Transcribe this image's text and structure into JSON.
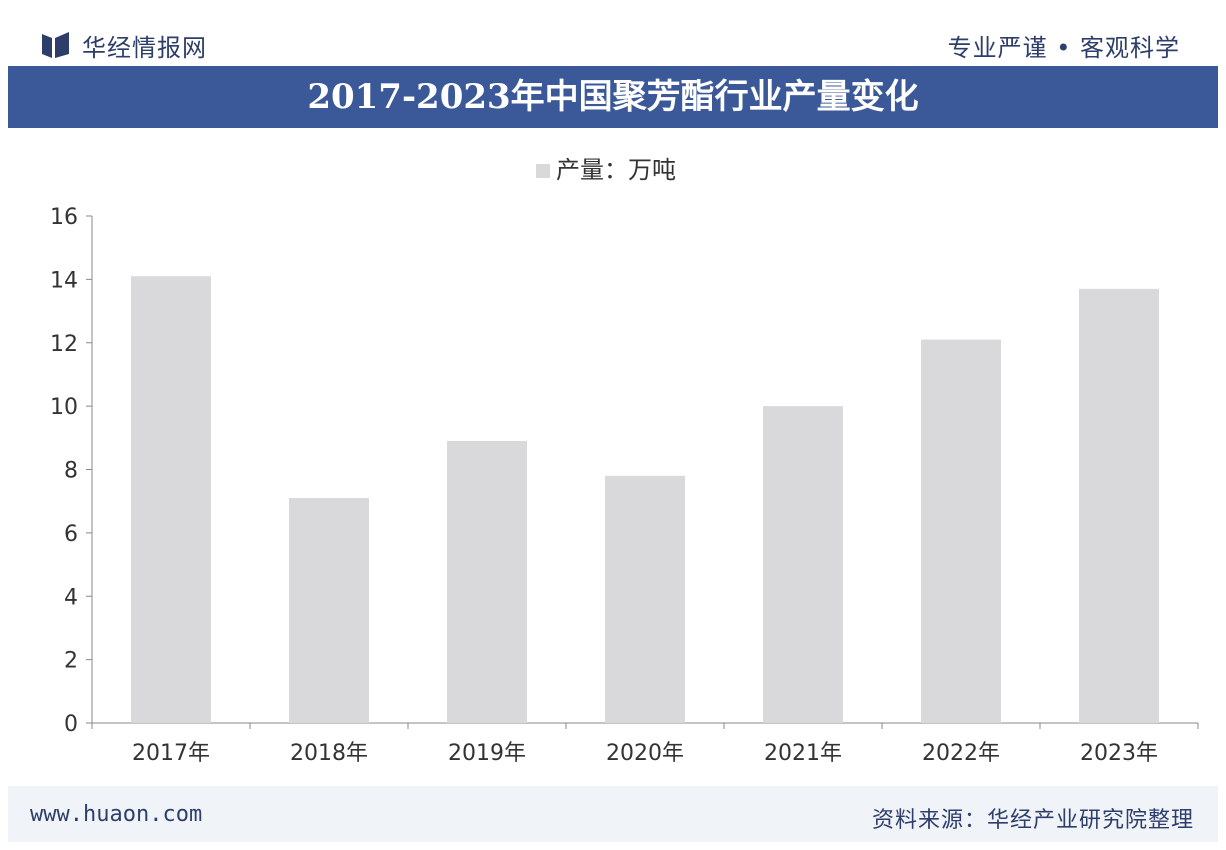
{
  "header": {
    "brand": "华经情报网",
    "slogan": "专业严谨 • 客观科学"
  },
  "title": "2017-2023年中国聚芳酯行业产量变化",
  "footer": {
    "url": "www.huaon.com",
    "source": "资料来源：华经产业研究院整理"
  },
  "colors": {
    "title_bar": "#3b5998",
    "bar": "#d9d9dc",
    "text_dark": "#2d3e6b"
  },
  "chart_data": {
    "type": "bar",
    "title": "2017-2023年中国聚芳酯行业产量变化",
    "legend": [
      "产量：万吨"
    ],
    "legend_position": "top",
    "categories": [
      "2017年",
      "2018年",
      "2019年",
      "2020年",
      "2021年",
      "2022年",
      "2023年"
    ],
    "series": [
      {
        "name": "产量：万吨",
        "values": [
          14.1,
          7.1,
          8.9,
          7.8,
          10.0,
          12.1,
          13.7
        ]
      }
    ],
    "yticks": [
      "0",
      "2",
      "4",
      "6",
      "8",
      "10",
      "12",
      "14",
      "16"
    ],
    "ylim": [
      0,
      16
    ],
    "grid": false
  }
}
